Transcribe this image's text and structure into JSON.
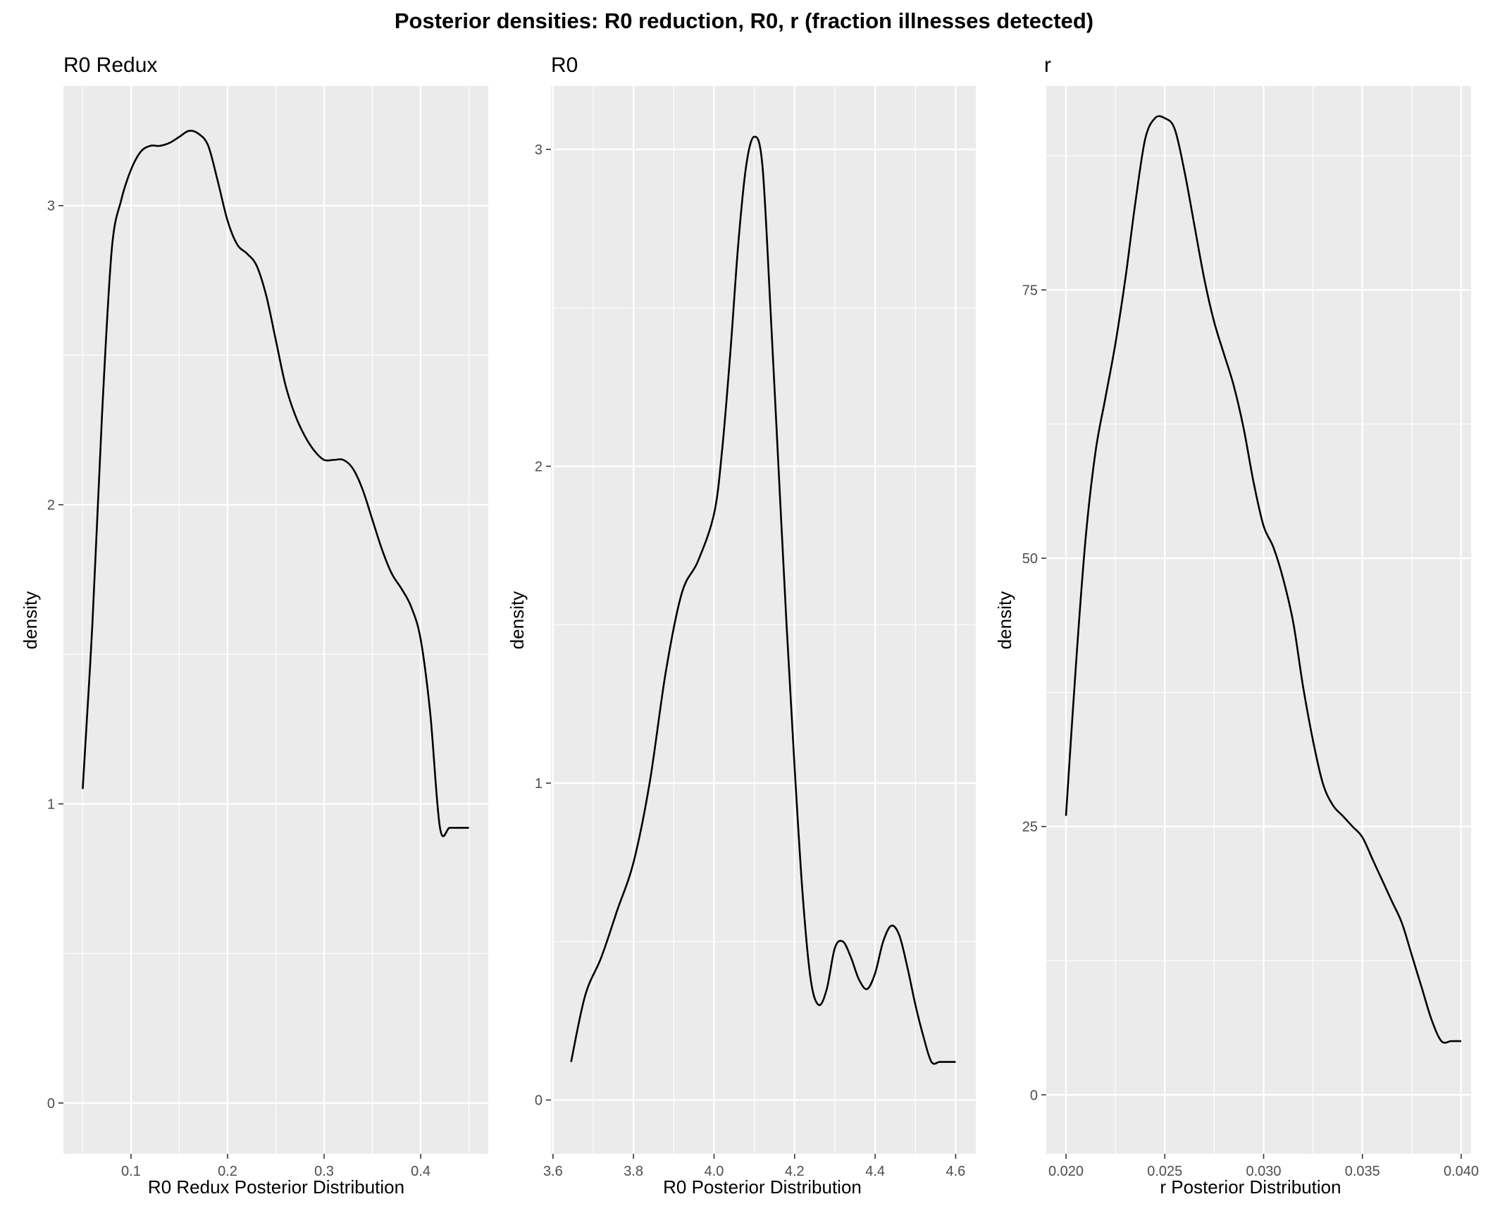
{
  "title": "Posterior densities: R0 reduction, R0, r (fraction illnesses detected)",
  "chart_data": [
    {
      "type": "line",
      "title": "R0 Redux",
      "xlabel": "R0 Redux Posterior Distribution",
      "ylabel": "density",
      "xlim": [
        0.03,
        0.47
      ],
      "ylim": [
        -0.17,
        3.4
      ],
      "xticks": [
        0.1,
        0.2,
        0.3,
        0.4
      ],
      "xtick_labels": [
        "0.1",
        "0.2",
        "0.3",
        "0.4"
      ],
      "yticks": [
        0,
        1,
        2,
        3
      ],
      "ytick_labels": [
        "0",
        "1",
        "2",
        "3"
      ],
      "grid": true,
      "x": [
        0.05,
        0.06,
        0.07,
        0.08,
        0.09,
        0.1,
        0.11,
        0.12,
        0.13,
        0.14,
        0.15,
        0.16,
        0.17,
        0.18,
        0.19,
        0.2,
        0.21,
        0.22,
        0.23,
        0.24,
        0.25,
        0.26,
        0.27,
        0.28,
        0.29,
        0.3,
        0.31,
        0.32,
        0.33,
        0.34,
        0.35,
        0.36,
        0.37,
        0.38,
        0.39,
        0.4,
        0.41,
        0.42,
        0.43,
        0.44,
        0.45
      ],
      "y": [
        1.05,
        1.6,
        2.3,
        2.85,
        3.02,
        3.12,
        3.18,
        3.2,
        3.2,
        3.21,
        3.23,
        3.25,
        3.24,
        3.2,
        3.08,
        2.95,
        2.87,
        2.84,
        2.8,
        2.7,
        2.55,
        2.4,
        2.3,
        2.23,
        2.18,
        2.15,
        2.15,
        2.15,
        2.12,
        2.05,
        1.95,
        1.85,
        1.77,
        1.72,
        1.66,
        1.55,
        1.3,
        0.92,
        0.92,
        0.92,
        0.92
      ]
    },
    {
      "type": "line",
      "title": "R0",
      "xlabel": "R0 Posterior Distribution",
      "ylabel": "density",
      "xlim": [
        3.595,
        4.65
      ],
      "ylim": [
        -0.17,
        3.2
      ],
      "xticks": [
        3.6,
        3.8,
        4.0,
        4.2,
        4.4,
        4.6
      ],
      "xtick_labels": [
        "3.6",
        "3.8",
        "4.0",
        "4.2",
        "4.4",
        "4.6"
      ],
      "yticks": [
        0,
        1,
        2,
        3
      ],
      "ytick_labels": [
        "0",
        "1",
        "2",
        "3"
      ],
      "grid": true,
      "x": [
        3.645,
        3.68,
        3.72,
        3.76,
        3.8,
        3.84,
        3.88,
        3.92,
        3.96,
        4.0,
        4.02,
        4.04,
        4.06,
        4.08,
        4.1,
        4.12,
        4.14,
        4.16,
        4.18,
        4.2,
        4.22,
        4.24,
        4.26,
        4.28,
        4.3,
        4.32,
        4.34,
        4.36,
        4.38,
        4.4,
        4.42,
        4.44,
        4.46,
        4.48,
        4.5,
        4.52,
        4.54,
        4.56,
        4.58,
        4.6
      ],
      "y": [
        0.12,
        0.33,
        0.45,
        0.6,
        0.75,
        1.0,
        1.35,
        1.6,
        1.7,
        1.85,
        2.05,
        2.35,
        2.7,
        2.95,
        3.04,
        2.95,
        2.5,
        2.0,
        1.5,
        1.05,
        0.65,
        0.38,
        0.3,
        0.35,
        0.48,
        0.5,
        0.45,
        0.38,
        0.35,
        0.4,
        0.5,
        0.55,
        0.52,
        0.42,
        0.3,
        0.2,
        0.12,
        0.12,
        0.12,
        0.12
      ]
    },
    {
      "type": "line",
      "title": "r",
      "xlabel": "r Posterior Distribution",
      "ylabel": "density",
      "xlim": [
        0.019,
        0.0405
      ],
      "ylim": [
        -5.5,
        94
      ],
      "xticks": [
        0.02,
        0.025,
        0.03,
        0.035,
        0.04
      ],
      "xtick_labels": [
        "0.020",
        "0.025",
        "0.030",
        "0.035",
        "0.040"
      ],
      "yticks": [
        0,
        25,
        50,
        75
      ],
      "ytick_labels": [
        "0",
        "25",
        "50",
        "75"
      ],
      "grid": true,
      "x": [
        0.02,
        0.0205,
        0.021,
        0.0215,
        0.022,
        0.0225,
        0.023,
        0.0235,
        0.024,
        0.0245,
        0.025,
        0.0255,
        0.026,
        0.0265,
        0.027,
        0.0275,
        0.028,
        0.0285,
        0.029,
        0.0295,
        0.03,
        0.0305,
        0.031,
        0.0315,
        0.032,
        0.0325,
        0.033,
        0.0335,
        0.034,
        0.0345,
        0.035,
        0.0355,
        0.036,
        0.0365,
        0.037,
        0.0375,
        0.038,
        0.0385,
        0.039,
        0.0395,
        0.04
      ],
      "y": [
        26,
        40,
        52,
        60,
        65,
        70,
        76,
        83,
        89,
        91,
        91,
        90,
        86,
        81,
        76,
        72,
        69,
        66,
        62,
        57,
        53,
        51,
        48,
        44,
        38,
        33,
        29,
        27,
        26,
        25,
        24,
        22,
        20,
        18,
        16,
        13,
        10,
        7,
        5,
        5,
        5
      ]
    }
  ]
}
